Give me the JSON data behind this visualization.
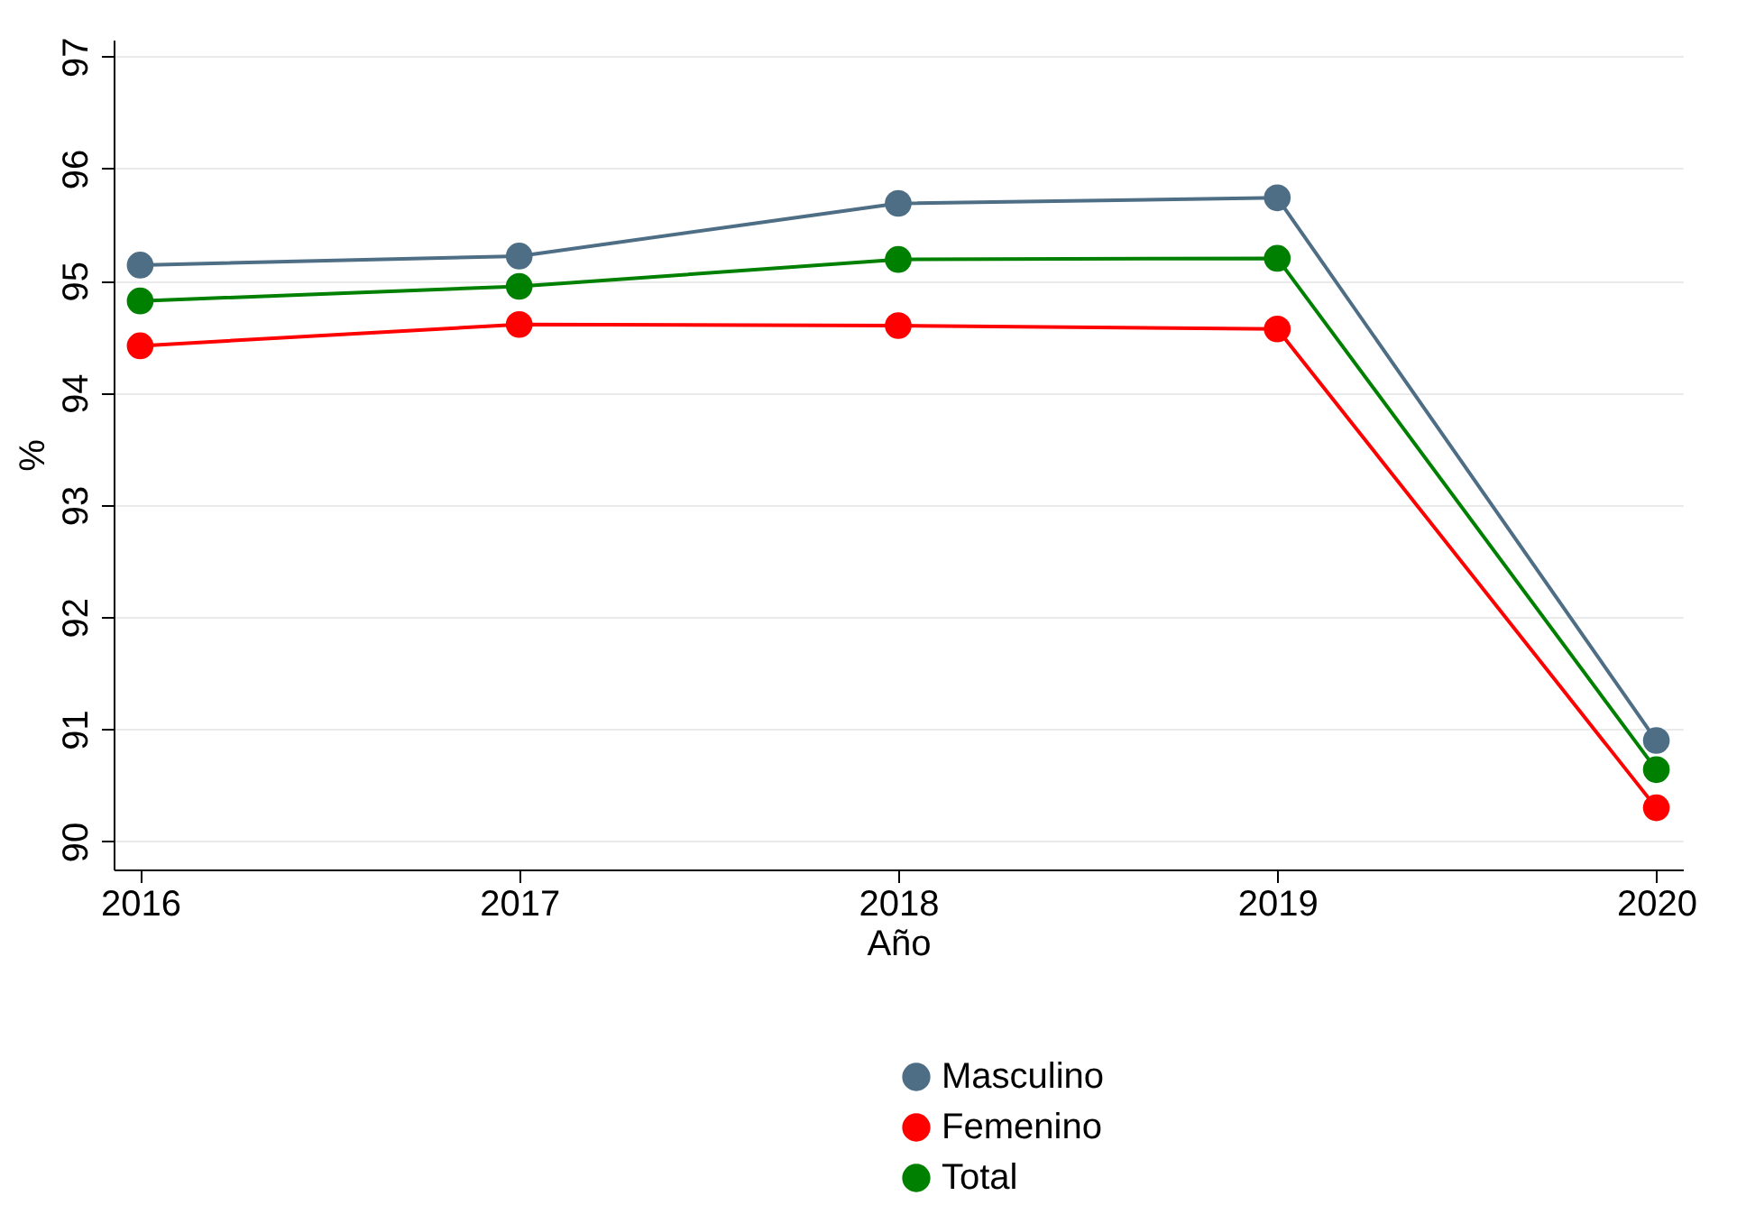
{
  "chart_data": {
    "type": "line",
    "xlabel": "Año",
    "ylabel": "%",
    "categories": [
      "2016",
      "2017",
      "2018",
      "2019",
      "2020"
    ],
    "series": [
      {
        "name": "Masculino",
        "color": "#4e6e85",
        "values": [
          95.14,
          95.22,
          95.69,
          95.74,
          90.9
        ]
      },
      {
        "name": "Femenino",
        "color": "#ff0000",
        "values": [
          94.42,
          94.61,
          94.6,
          94.57,
          90.3
        ]
      },
      {
        "name": "Total",
        "color": "#008000",
        "values": [
          94.82,
          94.95,
          95.19,
          95.2,
          90.64
        ]
      }
    ],
    "ylim": [
      89.75,
      97.15
    ],
    "yticks": [
      90,
      91,
      92,
      93,
      94,
      95,
      96,
      97
    ],
    "grid": "y",
    "legend": "bottom",
    "marker": "circle",
    "line_style": "solid"
  }
}
